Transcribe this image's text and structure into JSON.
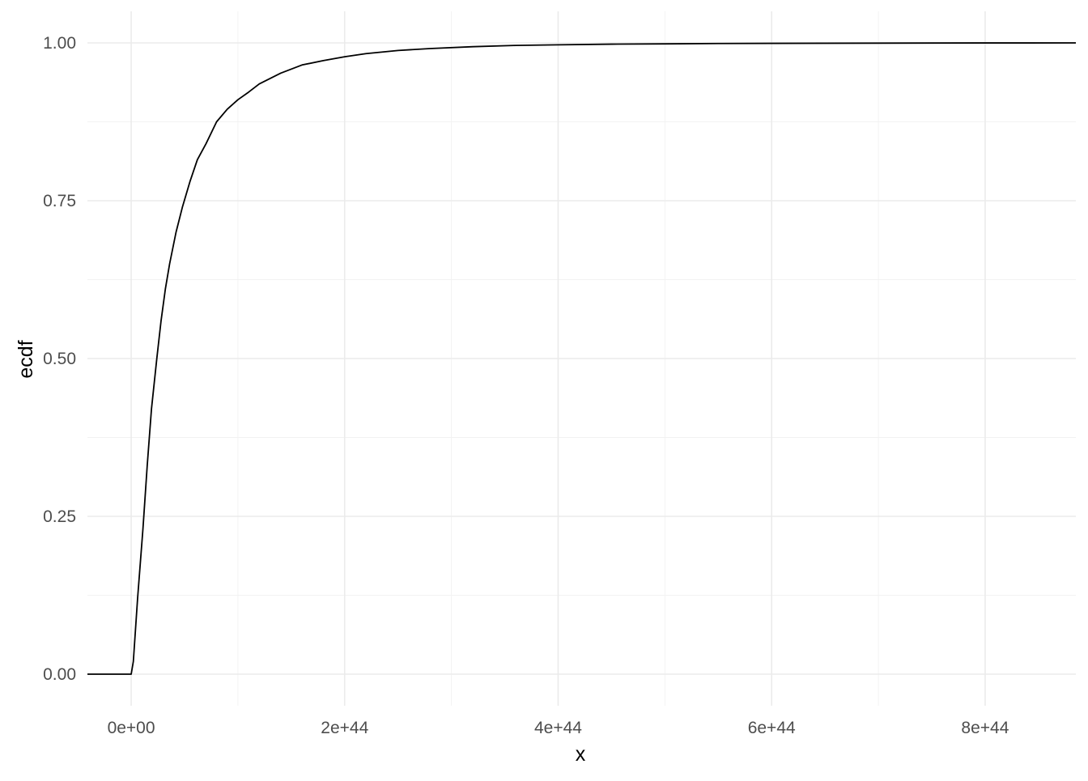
{
  "chart_data": {
    "type": "line",
    "title": "",
    "xlabel": "x",
    "ylabel": "ecdf",
    "xlim": [
      -4.1e+43,
      8.85e+44
    ],
    "ylim": [
      -0.05,
      1.05
    ],
    "x_ticks": [
      0,
      2e+44,
      4e+44,
      6e+44,
      8e+44
    ],
    "x_tick_labels": [
      "0e+00",
      "2e+44",
      "4e+44",
      "6e+44",
      "8e+44"
    ],
    "y_ticks": [
      0,
      0.25,
      0.5,
      0.75,
      1.0
    ],
    "y_tick_labels": [
      "0.00",
      "0.25",
      "0.50",
      "0.75",
      "1.00"
    ],
    "grid": true,
    "legend": "none",
    "line_color": "#000000",
    "series": [
      {
        "x": [
          -4.1e+43,
          0,
          2e+42,
          6e+42,
          1.1e+43,
          1.5e+43,
          1.9e+43,
          2.4e+43,
          2.8e+43,
          3.2e+43,
          3.6e+43,
          4.2e+43,
          4.8e+43,
          5.5e+43,
          6.2e+43,
          7e+43,
          8e+43,
          9e+43,
          1e+44,
          1.1e+44,
          1.2e+44,
          1.4e+44,
          1.6e+44,
          1.8e+44,
          2e+44,
          2.2e+44,
          2.5e+44,
          2.8e+44,
          3.2e+44,
          3.6e+44,
          4e+44,
          4.5e+44,
          5e+44,
          5.5e+44,
          6e+44,
          7e+44,
          8e+44,
          8.85e+44
        ],
        "y": [
          0,
          0,
          0.02,
          0.12,
          0.23,
          0.33,
          0.42,
          0.5,
          0.56,
          0.61,
          0.65,
          0.7,
          0.74,
          0.78,
          0.815,
          0.84,
          0.875,
          0.895,
          0.91,
          0.922,
          0.935,
          0.952,
          0.965,
          0.972,
          0.978,
          0.983,
          0.988,
          0.991,
          0.994,
          0.996,
          0.997,
          0.998,
          0.9985,
          0.999,
          0.9993,
          0.9996,
          0.9999,
          1.0
        ]
      }
    ]
  }
}
